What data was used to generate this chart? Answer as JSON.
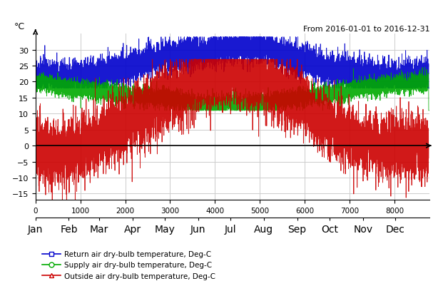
{
  "title_annotation": "From 2016-01-01 to 2016-12-31",
  "ylabel": "°C",
  "xlim": [
    0,
    8784
  ],
  "ylim": [
    -17,
    35
  ],
  "yticks": [
    -15,
    -10,
    -5,
    0,
    5,
    10,
    15,
    20,
    25,
    30
  ],
  "xticks_numeric": [
    0,
    1000,
    2000,
    3000,
    4000,
    5000,
    6000,
    7000,
    8000
  ],
  "month_labels": [
    "Jan",
    "Feb",
    "Mar",
    "Apr",
    "May",
    "Jun",
    "Jul",
    "Aug",
    "Sep",
    "Oct",
    "Nov",
    "Dec"
  ],
  "month_positions": [
    0,
    744,
    1416,
    2160,
    2880,
    3624,
    4344,
    5088,
    5832,
    6552,
    7296,
    8016
  ],
  "legend": [
    {
      "label": "Return air dry-bulb temperature, Deg-C",
      "color": "#0000CC",
      "marker": "s"
    },
    {
      "label": "Supply air dry-bulb temperature, Deg-C",
      "color": "#00AA00",
      "marker": "o"
    },
    {
      "label": "Outside air dry-bulb temperature, Deg-C",
      "color": "#CC0000",
      "marker": "^"
    }
  ],
  "return_air_base": [
    22,
    21,
    22,
    25,
    28,
    29,
    31,
    31,
    27,
    24,
    22,
    21
  ],
  "supply_air_base": [
    20,
    18,
    17,
    16,
    15,
    13,
    13,
    13,
    15,
    16,
    18,
    19
  ],
  "outside_air_base": [
    -1,
    -3,
    2,
    8,
    15,
    20,
    22,
    21,
    14,
    6,
    1,
    -1
  ],
  "return_air_noise": 2.5,
  "supply_air_noise": 1.5,
  "outside_air_noise": 5.0,
  "hours_per_year": 8784,
  "background_color": "#ffffff",
  "grid_color": "#cccccc",
  "zero_line_color": "#000000"
}
